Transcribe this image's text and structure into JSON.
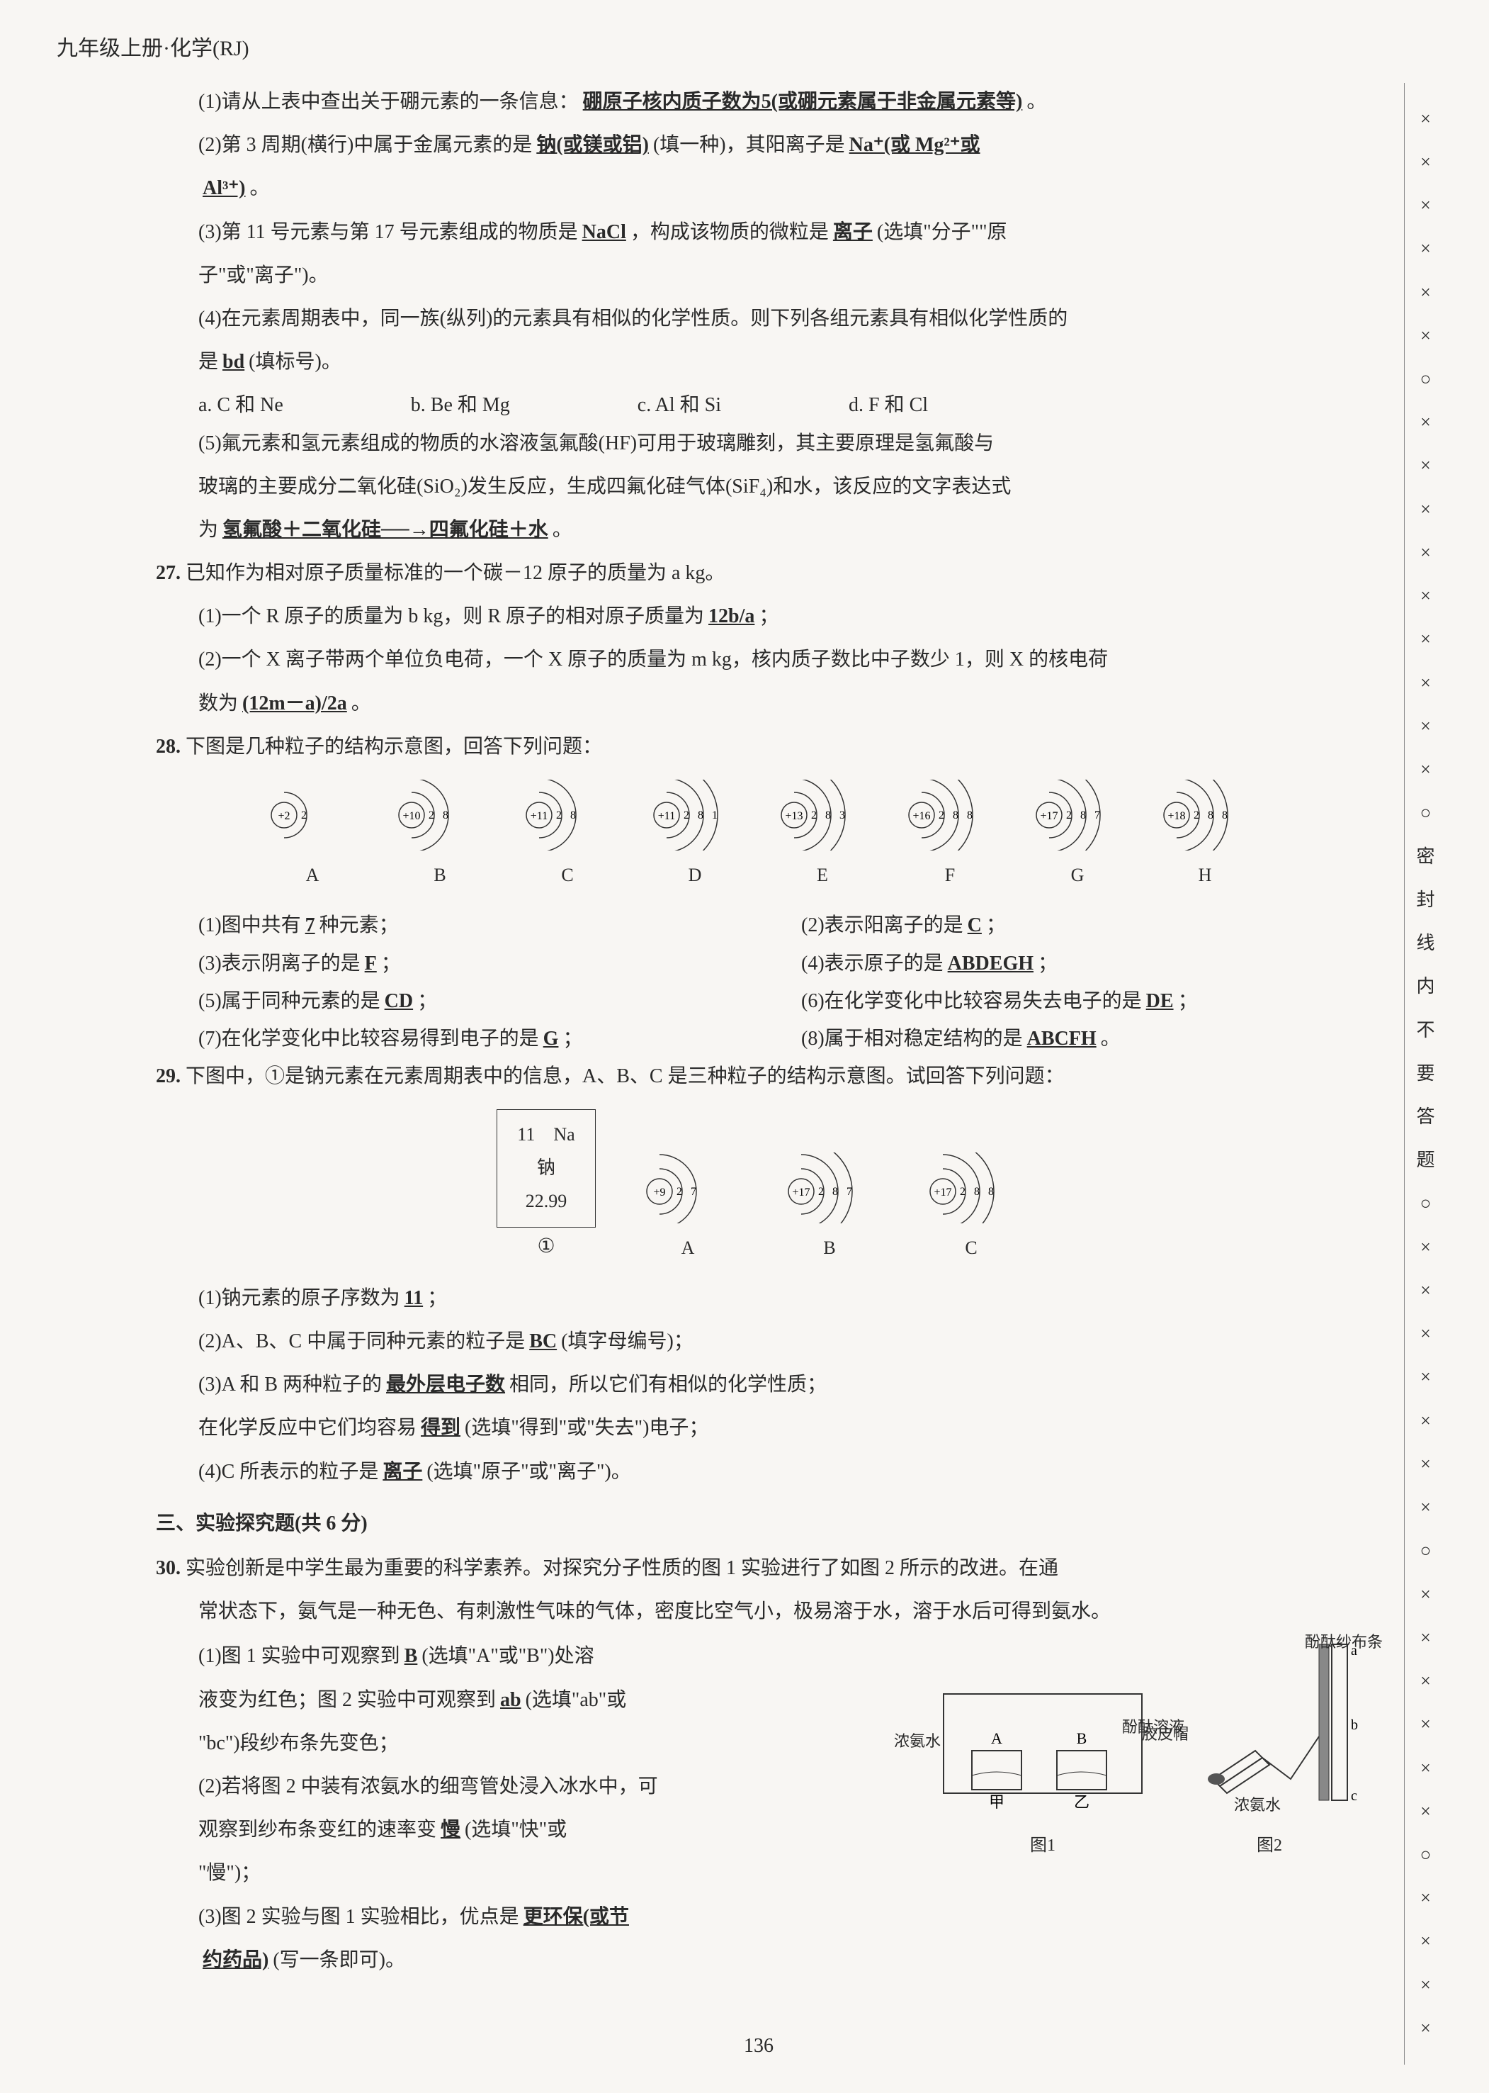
{
  "header": "九年级上册·化学(RJ)",
  "page_num": "136",
  "side_marks": [
    "×",
    "×",
    "×",
    "×",
    "×",
    "×",
    "○",
    "×",
    "×",
    "×",
    "×",
    "×",
    "×",
    "×",
    "×",
    "×",
    "○"
  ],
  "side_text": "密封线内不要答题",
  "side_marks2": [
    "○",
    "×",
    "×",
    "×",
    "×",
    "×",
    "×",
    "×",
    "○",
    "×",
    "×",
    "×",
    "×",
    "×",
    "×",
    "○",
    "×",
    "×",
    "×",
    "×"
  ],
  "q26": {
    "p1_pre": "(1)请从上表中查出关于硼元素的一条信息：",
    "p1_ans": "硼原子核内质子数为5(或硼元素属于非金属元素等)",
    "p1_post": "。",
    "p2_pre": "(2)第 3 周期(横行)中属于金属元素的是",
    "p2_ans1": "钠(或镁或铝)",
    "p2_mid": "(填一种)，其阳离子是",
    "p2_ans2": "Na⁺(或 Mg²⁺或",
    "p2_ans2b": "Al³⁺)",
    "p2_post": "。",
    "p3_pre": "(3)第 11 号元素与第 17 号元素组成的物质是",
    "p3_ans1": "NaCl",
    "p3_mid": "，构成该物质的微粒是",
    "p3_ans2": "离子",
    "p3_post": "(选填\"分子\"\"原",
    "p3_line2": "子\"或\"离子\")。",
    "p4_pre": "(4)在元素周期表中，同一族(纵列)的元素具有相似的化学性质。则下列各组元素具有相似化学性质的",
    "p4_line2_pre": "是",
    "p4_ans": "bd",
    "p4_line2_post": "(填标号)。",
    "p4_opts": [
      "a. C 和 Ne",
      "b. Be 和 Mg",
      "c. Al 和 Si",
      "d. F 和 Cl"
    ],
    "p5_l1": "(5)氟元素和氢元素组成的物质的水溶液氢氟酸(HF)可用于玻璃雕刻，其主要原理是氢氟酸与",
    "p5_l2": "玻璃的主要成分二氧化硅(SiO₂)发生反应，生成四氟化硅气体(SiF₄)和水，该反应的文字表达式",
    "p5_l3_pre": "为",
    "p5_ans": "氢氟酸＋二氧化硅──→四氟化硅＋水",
    "p5_l3_post": "。"
  },
  "q27": {
    "num": "27.",
    "intro": "已知作为相对原子质量标准的一个碳－12 原子的质量为 a kg。",
    "p1_pre": "(1)一个 R 原子的质量为 b kg，则 R 原子的相对原子质量为",
    "p1_ans": "12b/a",
    "p1_post": "；",
    "p2_pre": "(2)一个 X 离子带两个单位负电荷，一个 X 原子的质量为 m kg，核内质子数比中子数少 1，则 X 的核电荷",
    "p2_l2_pre": "数为",
    "p2_ans": "(12m－a)/2a",
    "p2_l2_post": "。"
  },
  "q28": {
    "num": "28.",
    "intro": "下图是几种粒子的结构示意图，回答下列问题：",
    "atoms": [
      {
        "label": "A",
        "core": "+2",
        "shells": [
          "2"
        ]
      },
      {
        "label": "B",
        "core": "+10",
        "shells": [
          "2",
          "8"
        ]
      },
      {
        "label": "C",
        "core": "+11",
        "shells": [
          "2",
          "8"
        ]
      },
      {
        "label": "D",
        "core": "+11",
        "shells": [
          "2",
          "8",
          "1"
        ]
      },
      {
        "label": "E",
        "core": "+13",
        "shells": [
          "2",
          "8",
          "3"
        ]
      },
      {
        "label": "F",
        "core": "+16",
        "shells": [
          "2",
          "8",
          "8"
        ]
      },
      {
        "label": "G",
        "core": "+17",
        "shells": [
          "2",
          "8",
          "7"
        ]
      },
      {
        "label": "H",
        "core": "+18",
        "shells": [
          "2",
          "8",
          "8"
        ]
      }
    ],
    "p1_pre": "(1)图中共有",
    "p1_ans": "7",
    "p1_post": "种元素；",
    "p2_pre": "(2)表示阳离子的是",
    "p2_ans": "C",
    "p2_post": "；",
    "p3_pre": "(3)表示阴离子的是",
    "p3_ans": "F",
    "p3_post": "；",
    "p4_pre": "(4)表示原子的是",
    "p4_ans": "ABDEGH",
    "p4_post": "；",
    "p5_pre": "(5)属于同种元素的是",
    "p5_ans": "CD",
    "p5_post": "；",
    "p6_pre": "(6)在化学变化中比较容易失去电子的是",
    "p6_ans": "DE",
    "p6_post": "；",
    "p7_pre": "(7)在化学变化中比较容易得到电子的是",
    "p7_ans": "G",
    "p7_post": "；",
    "p8_pre": "(8)属于相对稳定结构的是",
    "p8_ans": "ABCFH",
    "p8_post": "。"
  },
  "q29": {
    "num": "29.",
    "intro": "下图中，①是钠元素在元素周期表中的信息，A、B、C 是三种粒子的结构示意图。试回答下列问题：",
    "box": {
      "n": "11",
      "sym": "Na",
      "name": "钠",
      "mass": "22.99",
      "label": "①"
    },
    "atoms": [
      {
        "label": "A",
        "core": "+9",
        "shells": [
          "2",
          "7"
        ]
      },
      {
        "label": "B",
        "core": "+17",
        "shells": [
          "2",
          "8",
          "7"
        ]
      },
      {
        "label": "C",
        "core": "+17",
        "shells": [
          "2",
          "8",
          "8"
        ]
      }
    ],
    "p1_pre": "(1)钠元素的原子序数为",
    "p1_ans": "11",
    "p1_post": "；",
    "p2_pre": "(2)A、B、C 中属于同种元素的粒子是",
    "p2_ans": "BC",
    "p2_post": "(填字母编号)；",
    "p3_pre": "(3)A 和 B 两种粒子的",
    "p3_ans1": "最外层电子数",
    "p3_mid": "相同，所以它们有相似的化学性质；",
    "p3_l2_pre": "在化学反应中它们均容易",
    "p3_ans2": "得到",
    "p3_l2_post": "(选填\"得到\"或\"失去\")电子；",
    "p4_pre": "(4)C 所表示的粒子是",
    "p4_ans": "离子",
    "p4_post": "(选填\"原子\"或\"离子\")。"
  },
  "section3": "三、实验探究题(共 6 分)",
  "q30": {
    "num": "30.",
    "intro_l1": "实验创新是中学生最为重要的科学素养。对探究分子性质的图 1 实验进行了如图 2 所示的改进。在通",
    "intro_l2": "常状态下，氨气是一种无色、有刺激性气味的气体，密度比空气小，极易溶于水，溶于水后可得到氨水。",
    "p1_pre": "(1)图 1 实验中可观察到",
    "p1_ans": "B",
    "p1_mid": "(选填\"A\"或\"B\")处溶",
    "p1_l2_pre": "液变为红色；图 2 实验中可观察到",
    "p1_ans2": "ab",
    "p1_l2_post": "(选填\"ab\"或",
    "p1_l3": "\"bc\")段纱布条先变色；",
    "p2_l1": "(2)若将图 2 中装有浓氨水的细弯管处浸入冰水中，可",
    "p2_l2_pre": "观察到纱布条变红的速率变",
    "p2_ans": "慢",
    "p2_l2_post": "(选填\"快\"或",
    "p2_l3": "\"慢\")；",
    "p3_pre": "(3)图 2 实验与图 1 实验相比，优点是",
    "p3_ans": "更环保(或节",
    "p3_ans_l2": "约药品)",
    "p3_post": "(写一条即可)。",
    "fig1": {
      "label": "图1",
      "labels": {
        "left": "浓氨水",
        "a": "A",
        "b": "B",
        "right": "酚酞溶液",
        "bottom_left": "甲",
        "bottom_right": "乙"
      }
    },
    "fig2": {
      "label": "图2",
      "labels": {
        "top": "酚酞纱布条",
        "cap": "胶皮帽",
        "bottom": "浓氨水",
        "a": "a",
        "b": "b",
        "c": "c"
      }
    }
  }
}
